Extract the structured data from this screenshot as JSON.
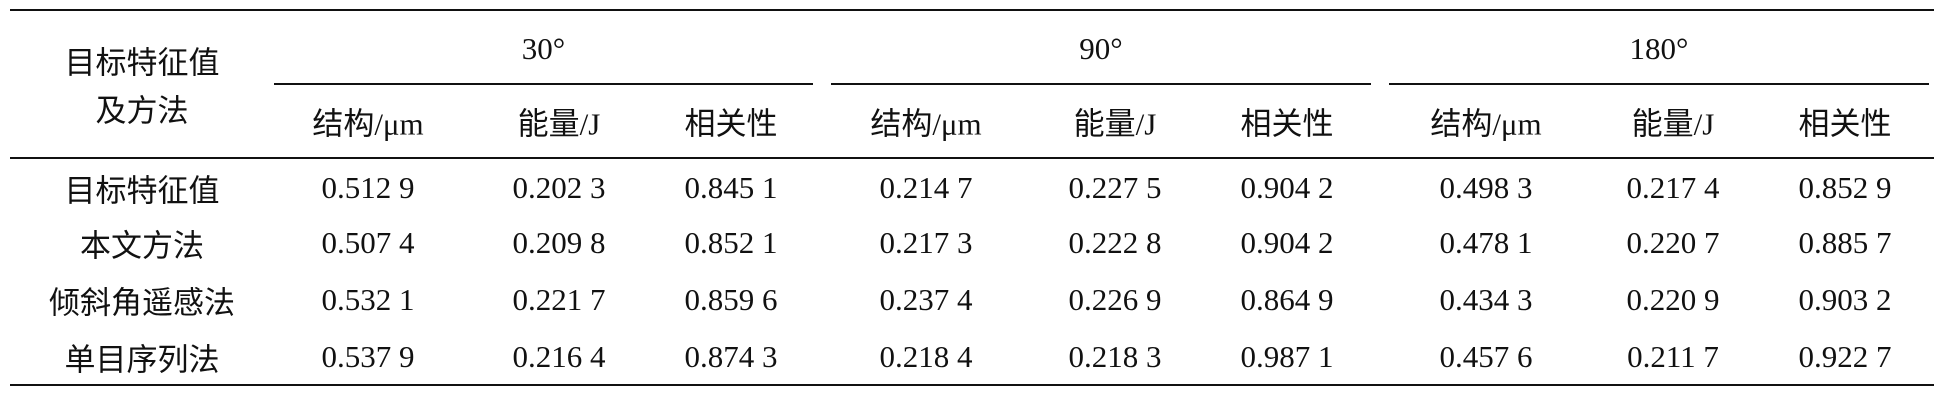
{
  "table": {
    "row_header": [
      "目标特征值",
      "及方法"
    ],
    "groups": [
      {
        "label": "30°",
        "columns": [
          "结构/μm",
          "能量/J",
          "相关性"
        ]
      },
      {
        "label": "90°",
        "columns": [
          "结构/μm",
          "能量/J",
          "相关性"
        ]
      },
      {
        "label": "180°",
        "columns": [
          "结构/μm",
          "能量/J",
          "相关性"
        ]
      }
    ],
    "rows": [
      {
        "label": "目标特征值",
        "values": [
          "0.512 9",
          "0.202 3",
          "0.845 1",
          "0.214 7",
          "0.227 5",
          "0.904 2",
          "0.498 3",
          "0.217 4",
          "0.852 9"
        ]
      },
      {
        "label": "本文方法",
        "values": [
          "0.507 4",
          "0.209 8",
          "0.852 1",
          "0.217 3",
          "0.222 8",
          "0.904 2",
          "0.478 1",
          "0.220 7",
          "0.885 7"
        ]
      },
      {
        "label": "倾斜角遥感法",
        "values": [
          "0.532 1",
          "0.221 7",
          "0.859 6",
          "0.237 4",
          "0.226 9",
          "0.864 9",
          "0.434 3",
          "0.220 9",
          "0.903 2"
        ]
      },
      {
        "label": "单目序列法",
        "values": [
          "0.537 9",
          "0.216 4",
          "0.874 3",
          "0.218 4",
          "0.218 3",
          "0.987 1",
          "0.457 6",
          "0.211 7",
          "0.922 7"
        ]
      }
    ]
  }
}
